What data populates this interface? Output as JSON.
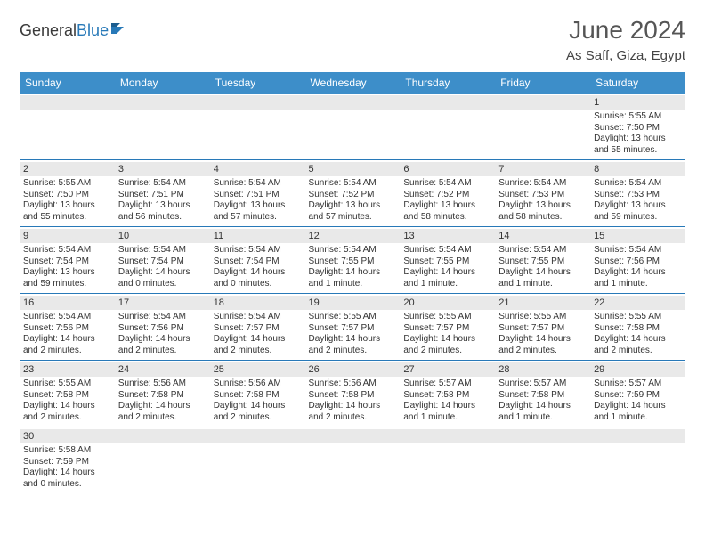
{
  "logo": {
    "text1": "General",
    "text2": "Blue"
  },
  "header": {
    "title": "June 2024",
    "location": "As Saff, Giza, Egypt"
  },
  "colors": {
    "header_bg": "#3d8ec9",
    "header_text": "#ffffff",
    "daynum_bg": "#e9e9e9",
    "cell_border": "#2879b8",
    "logo_accent": "#2879b8"
  },
  "weekdays": [
    "Sunday",
    "Monday",
    "Tuesday",
    "Wednesday",
    "Thursday",
    "Friday",
    "Saturday"
  ],
  "weeks": [
    [
      null,
      null,
      null,
      null,
      null,
      null,
      {
        "n": "1",
        "sr": "Sunrise: 5:55 AM",
        "ss": "Sunset: 7:50 PM",
        "dl": "Daylight: 13 hours and 55 minutes."
      }
    ],
    [
      {
        "n": "2",
        "sr": "Sunrise: 5:55 AM",
        "ss": "Sunset: 7:50 PM",
        "dl": "Daylight: 13 hours and 55 minutes."
      },
      {
        "n": "3",
        "sr": "Sunrise: 5:54 AM",
        "ss": "Sunset: 7:51 PM",
        "dl": "Daylight: 13 hours and 56 minutes."
      },
      {
        "n": "4",
        "sr": "Sunrise: 5:54 AM",
        "ss": "Sunset: 7:51 PM",
        "dl": "Daylight: 13 hours and 57 minutes."
      },
      {
        "n": "5",
        "sr": "Sunrise: 5:54 AM",
        "ss": "Sunset: 7:52 PM",
        "dl": "Daylight: 13 hours and 57 minutes."
      },
      {
        "n": "6",
        "sr": "Sunrise: 5:54 AM",
        "ss": "Sunset: 7:52 PM",
        "dl": "Daylight: 13 hours and 58 minutes."
      },
      {
        "n": "7",
        "sr": "Sunrise: 5:54 AM",
        "ss": "Sunset: 7:53 PM",
        "dl": "Daylight: 13 hours and 58 minutes."
      },
      {
        "n": "8",
        "sr": "Sunrise: 5:54 AM",
        "ss": "Sunset: 7:53 PM",
        "dl": "Daylight: 13 hours and 59 minutes."
      }
    ],
    [
      {
        "n": "9",
        "sr": "Sunrise: 5:54 AM",
        "ss": "Sunset: 7:54 PM",
        "dl": "Daylight: 13 hours and 59 minutes."
      },
      {
        "n": "10",
        "sr": "Sunrise: 5:54 AM",
        "ss": "Sunset: 7:54 PM",
        "dl": "Daylight: 14 hours and 0 minutes."
      },
      {
        "n": "11",
        "sr": "Sunrise: 5:54 AM",
        "ss": "Sunset: 7:54 PM",
        "dl": "Daylight: 14 hours and 0 minutes."
      },
      {
        "n": "12",
        "sr": "Sunrise: 5:54 AM",
        "ss": "Sunset: 7:55 PM",
        "dl": "Daylight: 14 hours and 1 minute."
      },
      {
        "n": "13",
        "sr": "Sunrise: 5:54 AM",
        "ss": "Sunset: 7:55 PM",
        "dl": "Daylight: 14 hours and 1 minute."
      },
      {
        "n": "14",
        "sr": "Sunrise: 5:54 AM",
        "ss": "Sunset: 7:55 PM",
        "dl": "Daylight: 14 hours and 1 minute."
      },
      {
        "n": "15",
        "sr": "Sunrise: 5:54 AM",
        "ss": "Sunset: 7:56 PM",
        "dl": "Daylight: 14 hours and 1 minute."
      }
    ],
    [
      {
        "n": "16",
        "sr": "Sunrise: 5:54 AM",
        "ss": "Sunset: 7:56 PM",
        "dl": "Daylight: 14 hours and 2 minutes."
      },
      {
        "n": "17",
        "sr": "Sunrise: 5:54 AM",
        "ss": "Sunset: 7:56 PM",
        "dl": "Daylight: 14 hours and 2 minutes."
      },
      {
        "n": "18",
        "sr": "Sunrise: 5:54 AM",
        "ss": "Sunset: 7:57 PM",
        "dl": "Daylight: 14 hours and 2 minutes."
      },
      {
        "n": "19",
        "sr": "Sunrise: 5:55 AM",
        "ss": "Sunset: 7:57 PM",
        "dl": "Daylight: 14 hours and 2 minutes."
      },
      {
        "n": "20",
        "sr": "Sunrise: 5:55 AM",
        "ss": "Sunset: 7:57 PM",
        "dl": "Daylight: 14 hours and 2 minutes."
      },
      {
        "n": "21",
        "sr": "Sunrise: 5:55 AM",
        "ss": "Sunset: 7:57 PM",
        "dl": "Daylight: 14 hours and 2 minutes."
      },
      {
        "n": "22",
        "sr": "Sunrise: 5:55 AM",
        "ss": "Sunset: 7:58 PM",
        "dl": "Daylight: 14 hours and 2 minutes."
      }
    ],
    [
      {
        "n": "23",
        "sr": "Sunrise: 5:55 AM",
        "ss": "Sunset: 7:58 PM",
        "dl": "Daylight: 14 hours and 2 minutes."
      },
      {
        "n": "24",
        "sr": "Sunrise: 5:56 AM",
        "ss": "Sunset: 7:58 PM",
        "dl": "Daylight: 14 hours and 2 minutes."
      },
      {
        "n": "25",
        "sr": "Sunrise: 5:56 AM",
        "ss": "Sunset: 7:58 PM",
        "dl": "Daylight: 14 hours and 2 minutes."
      },
      {
        "n": "26",
        "sr": "Sunrise: 5:56 AM",
        "ss": "Sunset: 7:58 PM",
        "dl": "Daylight: 14 hours and 2 minutes."
      },
      {
        "n": "27",
        "sr": "Sunrise: 5:57 AM",
        "ss": "Sunset: 7:58 PM",
        "dl": "Daylight: 14 hours and 1 minute."
      },
      {
        "n": "28",
        "sr": "Sunrise: 5:57 AM",
        "ss": "Sunset: 7:58 PM",
        "dl": "Daylight: 14 hours and 1 minute."
      },
      {
        "n": "29",
        "sr": "Sunrise: 5:57 AM",
        "ss": "Sunset: 7:59 PM",
        "dl": "Daylight: 14 hours and 1 minute."
      }
    ],
    [
      {
        "n": "30",
        "sr": "Sunrise: 5:58 AM",
        "ss": "Sunset: 7:59 PM",
        "dl": "Daylight: 14 hours and 0 minutes."
      },
      null,
      null,
      null,
      null,
      null,
      null
    ]
  ]
}
